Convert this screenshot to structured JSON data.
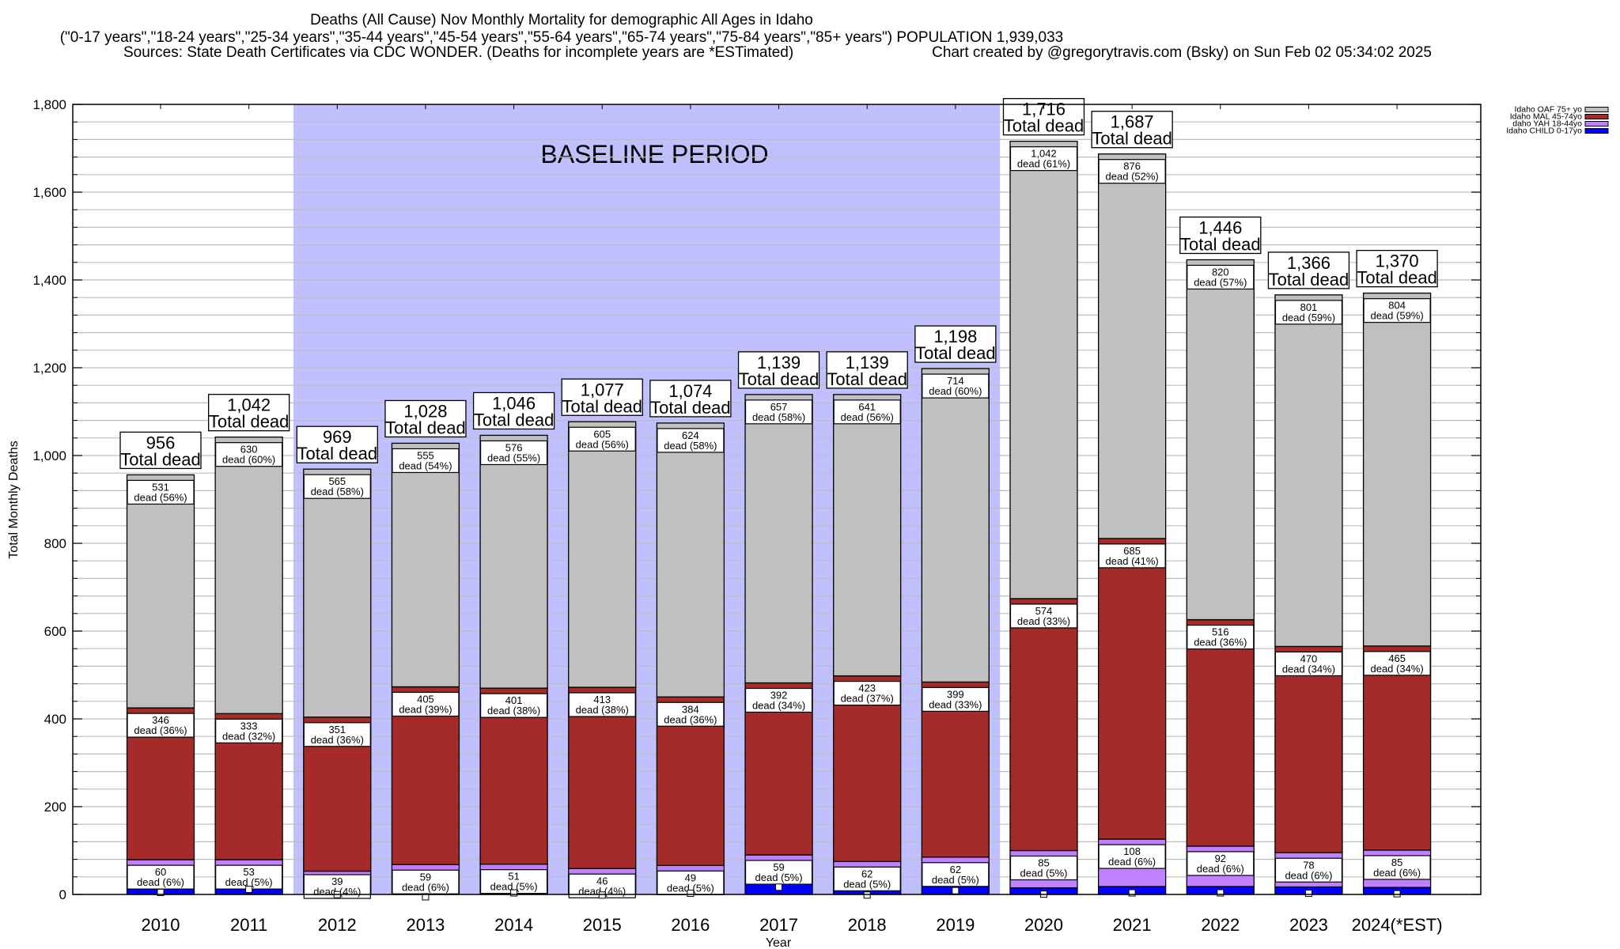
{
  "chart_data": {
    "type": "bar",
    "stacked": true,
    "title": "Deaths (All Cause) Nov Monthly Mortality for demographic All Ages in Idaho",
    "subtitle": "(\"0-17 years\",\"18-24 years\",\"25-34 years\",\"35-44 years\",\"45-54 years\",\"55-64 years\",\"65-74 years\",\"75-84 years\",\"85+ years\") POPULATION 1,939,033",
    "sources": "Sources: State Death Certificates via CDC WONDER. (Deaths for incomplete years are *ESTimated)",
    "credit": "Chart created by @gregorytravis.com (Bsky) on Sun Feb 02 05:34:02 2025",
    "xlabel": "Year",
    "ylabel": "Total Monthly Deaths",
    "ylim": [
      0,
      1800
    ],
    "yticks": [
      0,
      200,
      400,
      600,
      800,
      1000,
      1200,
      1400,
      1600,
      1800
    ],
    "ytick_labels": [
      "0",
      "200",
      "400",
      "600",
      "800",
      "1,000",
      "1,200",
      "1,400",
      "1,600",
      "1,800"
    ],
    "minor_grid_step": 40,
    "grid": true,
    "legend_position": "top-right, outside plot",
    "categories": [
      "2010",
      "2011",
      "2012",
      "2013",
      "2014",
      "2015",
      "2016",
      "2017",
      "2018",
      "2019",
      "2020",
      "2021",
      "2022",
      "2023",
      "2024(*EST)"
    ],
    "baseline_period": {
      "label": "BASELINE PERIOD",
      "from": "2012",
      "to": "2019",
      "color": "#c0c0ff"
    },
    "totals": [
      956,
      1042,
      969,
      1028,
      1046,
      1077,
      1074,
      1139,
      1139,
      1198,
      1716,
      1687,
      1446,
      1366,
      1370
    ],
    "total_labels": [
      "956",
      "1,042",
      "969",
      "1,028",
      "1,046",
      "1,077",
      "1,074",
      "1,139",
      "1,139",
      "1,198",
      "1,716",
      "1,687",
      "1,446",
      "1,366",
      "1,370"
    ],
    "total_suffix": "Total dead",
    "series": [
      {
        "name": "Idaho CHILD 0-17yo",
        "color": "#0000ff",
        "values": [
          19,
          26,
          14,
          9,
          18,
          13,
          17,
          31,
          13,
          23,
          15,
          18,
          18,
          17,
          16
        ]
      },
      {
        "name": "daho YAH 18-44yo",
        "color": "#c080ff",
        "values": [
          60,
          53,
          39,
          59,
          51,
          46,
          49,
          59,
          62,
          62,
          85,
          108,
          92,
          78,
          85
        ],
        "labels": [
          "60",
          "53",
          "39",
          "59",
          "51",
          "46",
          "49",
          "59",
          "62",
          "62",
          "85",
          "108",
          "92",
          "78",
          "85"
        ],
        "pct_labels": [
          "dead (6%)",
          "dead (5%)",
          "dead (4%)",
          "dead (6%)",
          "dead (5%)",
          "dead (4%)",
          "dead (5%)",
          "dead (5%)",
          "dead (5%)",
          "dead (5%)",
          "dead (5%)",
          "dead (6%)",
          "dead (6%)",
          "dead (6%)",
          "dead (6%)"
        ]
      },
      {
        "name": "Idaho MAL 45-74yo",
        "color": "#a52a2a",
        "values": [
          346,
          333,
          351,
          405,
          401,
          413,
          384,
          392,
          423,
          399,
          574,
          685,
          516,
          470,
          465
        ],
        "labels": [
          "346",
          "333",
          "351",
          "405",
          "401",
          "413",
          "384",
          "392",
          "423",
          "399",
          "574",
          "685",
          "516",
          "470",
          "465"
        ],
        "pct_labels": [
          "dead (36%)",
          "dead (32%)",
          "dead (36%)",
          "dead (39%)",
          "dead (38%)",
          "dead (38%)",
          "dead (36%)",
          "dead (34%)",
          "dead (37%)",
          "dead (33%)",
          "dead (33%)",
          "dead (41%)",
          "dead (36%)",
          "dead (34%)",
          "dead (34%)"
        ]
      },
      {
        "name": "Idaho OAF 75+ yo",
        "color": "#c0c0c0",
        "values": [
          531,
          630,
          565,
          555,
          576,
          605,
          624,
          657,
          641,
          714,
          1042,
          876,
          820,
          801,
          804
        ],
        "labels": [
          "531",
          "630",
          "565",
          "555",
          "576",
          "605",
          "624",
          "657",
          "641",
          "714",
          "1,042",
          "876",
          "820",
          "801",
          "804"
        ],
        "pct_labels": [
          "dead (56%)",
          "dead (60%)",
          "dead (58%)",
          "dead (54%)",
          "dead (55%)",
          "dead (56%)",
          "dead (58%)",
          "dead (58%)",
          "dead (56%)",
          "dead (60%)",
          "dead (61%)",
          "dead (52%)",
          "dead (57%)",
          "dead (59%)",
          "dead (59%)"
        ]
      }
    ],
    "legend_order": [
      "Idaho OAF 75+ yo",
      "Idaho MAL 45-74yo",
      "daho YAH 18-44yo",
      "Idaho CHILD 0-17yo"
    ]
  }
}
